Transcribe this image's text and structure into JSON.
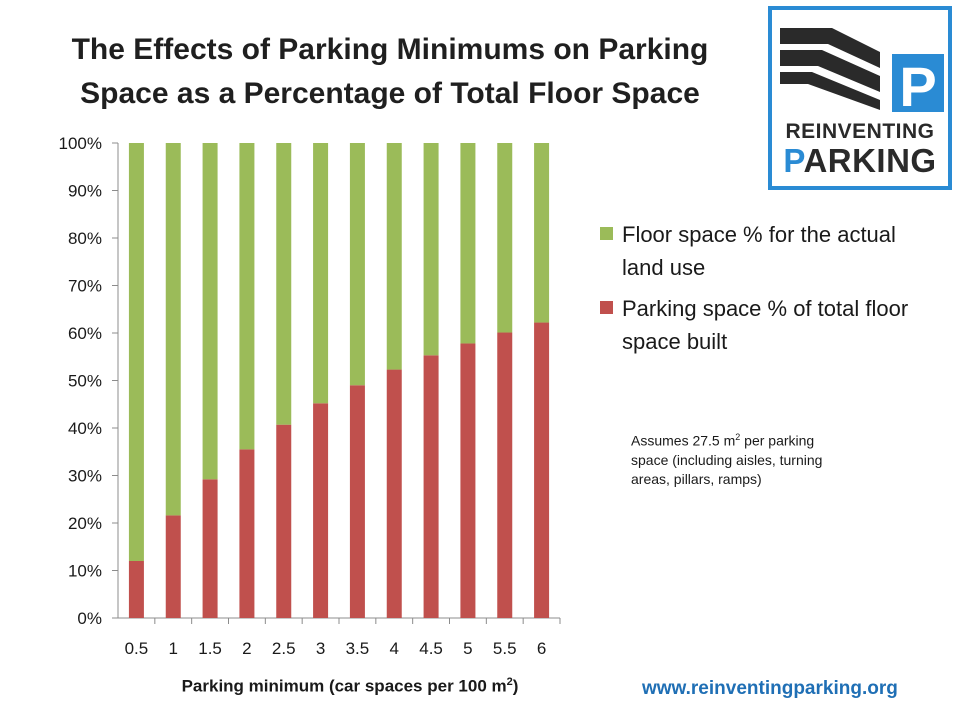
{
  "title": "The Effects of Parking Minimums on Parking Space as a Percentage of Total Floor Space",
  "logo": {
    "line1": "REINVENTING",
    "line2_prefix": "P",
    "line2_rest": "ARKING",
    "icon": "parking-p-road-icon",
    "accent": "#2a8bd4"
  },
  "note": {
    "prefix": "Assumes 27.5 m",
    "sup": "2",
    "rest": " per parking space (including aisles, turning areas, pillars, ramps)"
  },
  "xlabel": {
    "prefix": "Parking minimum (car spaces per 100 m",
    "sup": "2",
    "suffix": ")"
  },
  "website": "www.reinventingparking.org",
  "chart_data": {
    "type": "bar",
    "stacked": true,
    "percent": true,
    "categories": [
      "0.5",
      "1",
      "1.5",
      "2",
      "2.5",
      "3",
      "3.5",
      "4",
      "4.5",
      "5",
      "5.5",
      "6"
    ],
    "series": [
      {
        "name": "Parking space % of total floor space built",
        "color": "#c0504d",
        "values": [
          12,
          21.6,
          29.2,
          35.5,
          40.7,
          45.2,
          49,
          52.3,
          55.3,
          57.8,
          60.1,
          62.2
        ]
      },
      {
        "name": "Floor space % for the actual land use",
        "color": "#9bbb59",
        "values": [
          88,
          78.4,
          70.8,
          64.5,
          59.3,
          54.8,
          51,
          47.7,
          44.7,
          42.2,
          39.9,
          37.8
        ]
      }
    ],
    "yticks": [
      "0%",
      "10%",
      "20%",
      "30%",
      "40%",
      "50%",
      "60%",
      "70%",
      "80%",
      "90%",
      "100%"
    ],
    "ylim": [
      0,
      100
    ],
    "grid": false,
    "legend_position": "right"
  }
}
